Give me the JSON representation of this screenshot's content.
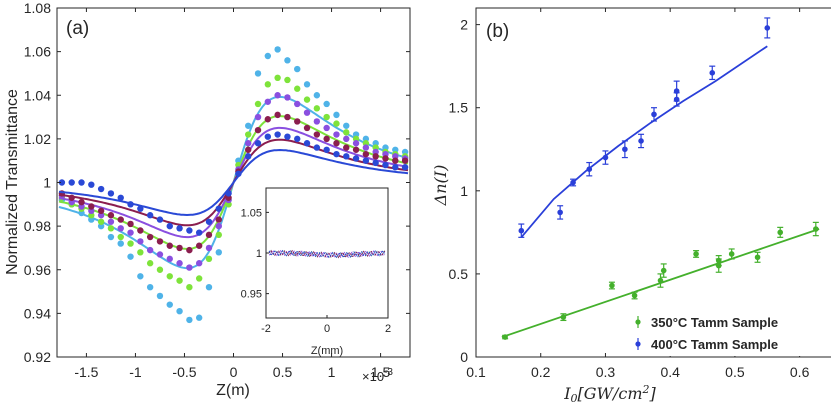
{
  "chart_data": [
    {
      "type": "scatter",
      "panel_label": "(a)",
      "xlabel": "Z(m)",
      "ylabel": "Normalized Transmittance",
      "x_exponent": "×10",
      "x_exponent_power": "-3",
      "xlim": [
        -1.8,
        1.8
      ],
      "ylim": [
        0.92,
        1.08
      ],
      "xticks": [
        -1.5,
        -1,
        -0.5,
        0,
        0.5,
        1,
        1.5
      ],
      "xtick_labels": [
        "-1.5",
        "-1",
        "-0.5",
        "0",
        "0.5",
        "1",
        "1.5"
      ],
      "yticks": [
        0.92,
        0.94,
        0.96,
        0.98,
        1,
        1.02,
        1.04,
        1.06,
        1.08
      ],
      "ytick_labels": [
        "0.92",
        "0.94",
        "0.96",
        "0.98",
        "1",
        "1.02",
        "1.04",
        "1.06",
        "1.08"
      ],
      "series": [
        {
          "name": "curve-light-blue",
          "color": "#4fb3e8",
          "amplitude": 0.058,
          "x": [
            -1.75,
            -1.65,
            -1.55,
            -1.45,
            -1.35,
            -1.25,
            -1.15,
            -1.05,
            -0.95,
            -0.85,
            -0.75,
            -0.65,
            -0.55,
            -0.45,
            -0.35,
            -0.25,
            -0.15,
            -0.05,
            0.05,
            0.15,
            0.25,
            0.35,
            0.45,
            0.55,
            0.65,
            0.75,
            0.85,
            0.95,
            1.05,
            1.15,
            1.25,
            1.35,
            1.45,
            1.55,
            1.65,
            1.75
          ],
          "y": [
            0.992,
            0.99,
            0.986,
            0.983,
            0.98,
            0.975,
            0.972,
            0.966,
            0.957,
            0.952,
            0.948,
            0.944,
            0.941,
            0.937,
            0.938,
            0.952,
            0.968,
            0.992,
            1.01,
            1.026,
            1.05,
            1.058,
            1.061,
            1.056,
            1.052,
            1.045,
            1.04,
            1.036,
            1.031,
            1.026,
            1.022,
            1.02,
            1.018,
            1.016,
            1.015,
            1.014
          ]
        },
        {
          "name": "curve-green",
          "color": "#7ee33a",
          "amplitude": 0.045,
          "x": [
            -1.75,
            -1.65,
            -1.55,
            -1.45,
            -1.35,
            -1.25,
            -1.15,
            -1.05,
            -0.95,
            -0.85,
            -0.75,
            -0.65,
            -0.55,
            -0.45,
            -0.35,
            -0.25,
            -0.15,
            -0.05,
            0.05,
            0.15,
            0.25,
            0.35,
            0.45,
            0.55,
            0.65,
            0.75,
            0.85,
            0.95,
            1.05,
            1.15,
            1.25,
            1.35,
            1.45,
            1.55,
            1.65,
            1.75
          ],
          "y": [
            0.993,
            0.99,
            0.988,
            0.985,
            0.982,
            0.979,
            0.975,
            0.972,
            0.968,
            0.963,
            0.96,
            0.957,
            0.955,
            0.952,
            0.956,
            0.965,
            0.976,
            0.99,
            1.008,
            1.022,
            1.036,
            1.045,
            1.048,
            1.047,
            1.043,
            1.038,
            1.034,
            1.03,
            1.027,
            1.023,
            1.02,
            1.018,
            1.016,
            1.014,
            1.013,
            1.012
          ]
        },
        {
          "name": "curve-purple",
          "color": "#8a4fe0",
          "amplitude": 0.037,
          "x": [
            -1.75,
            -1.65,
            -1.55,
            -1.45,
            -1.35,
            -1.25,
            -1.15,
            -1.05,
            -0.95,
            -0.85,
            -0.75,
            -0.65,
            -0.55,
            -0.45,
            -0.35,
            -0.25,
            -0.15,
            -0.05,
            0.05,
            0.15,
            0.25,
            0.35,
            0.45,
            0.55,
            0.65,
            0.75,
            0.85,
            0.95,
            1.05,
            1.15,
            1.25,
            1.35,
            1.45,
            1.55,
            1.65,
            1.75
          ],
          "y": [
            0.994,
            0.991,
            0.989,
            0.987,
            0.985,
            0.982,
            0.979,
            0.977,
            0.973,
            0.969,
            0.967,
            0.965,
            0.963,
            0.961,
            0.963,
            0.97,
            0.98,
            0.992,
            1.006,
            1.018,
            1.03,
            1.037,
            1.04,
            1.039,
            1.036,
            1.032,
            1.028,
            1.025,
            1.022,
            1.02,
            1.018,
            1.016,
            1.014,
            1.013,
            1.012,
            1.011
          ]
        },
        {
          "name": "curve-maroon",
          "color": "#8b1e4f",
          "amplitude": 0.029,
          "x": [
            -1.75,
            -1.65,
            -1.55,
            -1.45,
            -1.35,
            -1.25,
            -1.15,
            -1.05,
            -0.95,
            -0.85,
            -0.75,
            -0.65,
            -0.55,
            -0.45,
            -0.35,
            -0.25,
            -0.15,
            -0.05,
            0.05,
            0.15,
            0.25,
            0.35,
            0.45,
            0.55,
            0.65,
            0.75,
            0.85,
            0.95,
            1.05,
            1.15,
            1.25,
            1.35,
            1.45,
            1.55,
            1.65,
            1.75
          ],
          "y": [
            0.995,
            0.993,
            0.991,
            0.989,
            0.987,
            0.985,
            0.983,
            0.981,
            0.978,
            0.975,
            0.973,
            0.971,
            0.97,
            0.969,
            0.971,
            0.976,
            0.983,
            0.993,
            1.005,
            1.015,
            1.024,
            1.029,
            1.031,
            1.03,
            1.028,
            1.025,
            1.022,
            1.02,
            1.018,
            1.016,
            1.015,
            1.013,
            1.012,
            1.011,
            1.01,
            1.01
          ]
        },
        {
          "name": "curve-blue",
          "color": "#2a49d6",
          "amplitude": 0.022,
          "x": [
            -1.75,
            -1.65,
            -1.55,
            -1.45,
            -1.35,
            -1.25,
            -1.15,
            -1.05,
            -0.95,
            -0.85,
            -0.75,
            -0.65,
            -0.55,
            -0.45,
            -0.35,
            -0.25,
            -0.15,
            -0.05,
            0.05,
            0.15,
            0.25,
            0.35,
            0.45,
            0.55,
            0.65,
            0.75,
            0.85,
            0.95,
            1.05,
            1.15,
            1.25,
            1.35,
            1.45,
            1.55,
            1.65,
            1.75
          ],
          "y": [
            1.0,
            1.0,
            1.0,
            0.999,
            0.997,
            0.995,
            0.993,
            0.99,
            0.988,
            0.985,
            0.983,
            0.98,
            0.979,
            0.978,
            0.977,
            0.982,
            0.988,
            0.995,
            1.004,
            1.012,
            1.018,
            1.021,
            1.022,
            1.021,
            1.02,
            1.018,
            1.016,
            1.015,
            1.013,
            1.012,
            1.011,
            1.01,
            1.009,
            1.008,
            1.007,
            1.007
          ]
        }
      ],
      "inset": {
        "xlabel": "Z(mm)",
        "xlim": [
          -2,
          2
        ],
        "ylim": [
          0.92,
          1.08
        ],
        "xticks": [
          -2,
          0,
          2
        ],
        "xtick_labels": [
          "-2",
          "0",
          "2"
        ],
        "yticks": [
          0.95,
          1,
          1.05
        ],
        "ytick_labels": [
          "0.95",
          "1",
          "1.05"
        ]
      }
    },
    {
      "type": "scatter",
      "panel_label": "(b)",
      "xlabel": "I0[GW/cm2]",
      "ylabel": "Δn(I)",
      "xlim": [
        0.1,
        0.65
      ],
      "ylim": [
        0,
        2.1
      ],
      "xticks": [
        0.1,
        0.2,
        0.3,
        0.4,
        0.5,
        0.6
      ],
      "xtick_labels": [
        "0.1",
        "0.2",
        "0.3",
        "0.4",
        "0.5",
        "0.6"
      ],
      "yticks": [
        0,
        0.5,
        1,
        1.5,
        2
      ],
      "ytick_labels": [
        "0",
        "0.5",
        "1",
        "1.5",
        "2"
      ],
      "legend_position": "bottom-right",
      "series": [
        {
          "name": "350°C Tamm Sample",
          "color": "#44b02c",
          "x": [
            0.145,
            0.235,
            0.31,
            0.345,
            0.385,
            0.39,
            0.44,
            0.475,
            0.475,
            0.495,
            0.535,
            0.57,
            0.625
          ],
          "y": [
            0.12,
            0.24,
            0.43,
            0.37,
            0.46,
            0.52,
            0.62,
            0.55,
            0.58,
            0.62,
            0.6,
            0.75,
            0.77
          ],
          "err": [
            0.01,
            0.02,
            0.02,
            0.02,
            0.04,
            0.04,
            0.02,
            0.04,
            0.03,
            0.03,
            0.03,
            0.03,
            0.04
          ],
          "fit_x": [
            0.14,
            0.63
          ],
          "fit_y": [
            0.12,
            0.77
          ]
        },
        {
          "name": "400°C Tamm Sample",
          "color": "#2a3fd9",
          "x": [
            0.17,
            0.23,
            0.25,
            0.275,
            0.3,
            0.33,
            0.355,
            0.375,
            0.41,
            0.41,
            0.465,
            0.55
          ],
          "y": [
            0.76,
            0.87,
            1.05,
            1.13,
            1.2,
            1.25,
            1.3,
            1.46,
            1.55,
            1.6,
            1.71,
            1.98
          ],
          "err": [
            0.04,
            0.04,
            0.02,
            0.04,
            0.04,
            0.05,
            0.04,
            0.04,
            0.04,
            0.06,
            0.04,
            0.06
          ],
          "fit_x": [
            0.17,
            0.22,
            0.27,
            0.32,
            0.37,
            0.42,
            0.47,
            0.55
          ],
          "fit_y": [
            0.72,
            0.95,
            1.12,
            1.27,
            1.41,
            1.54,
            1.66,
            1.87
          ]
        }
      ]
    }
  ]
}
